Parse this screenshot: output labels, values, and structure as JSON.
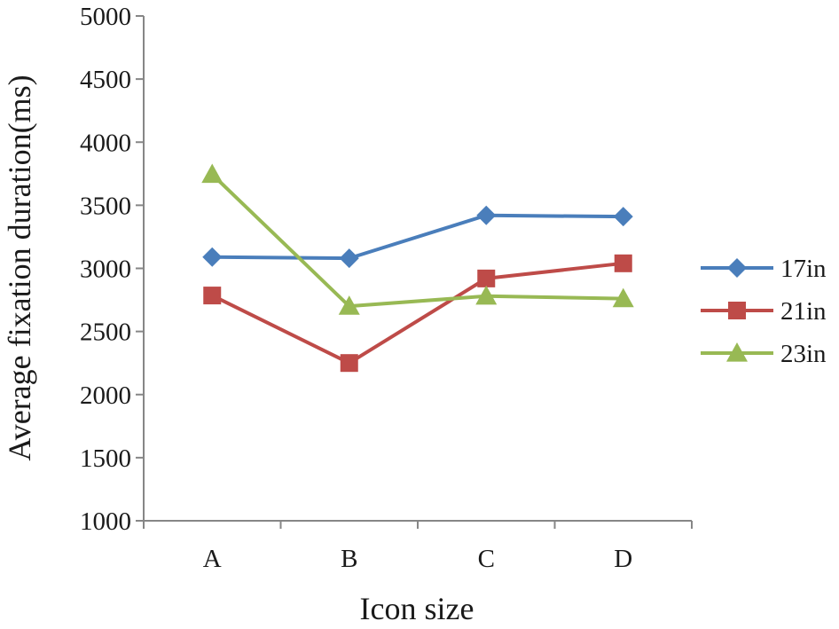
{
  "chart_data": {
    "type": "line",
    "title": "",
    "xlabel": "Icon size",
    "ylabel": "Average fixation duration(ms)",
    "categories": [
      "A",
      "B",
      "C",
      "D"
    ],
    "ylim": [
      1000,
      5000
    ],
    "yticks": [
      1000,
      1500,
      2000,
      2500,
      3000,
      3500,
      4000,
      4500,
      5000
    ],
    "grid": false,
    "legend_position": "right",
    "series": [
      {
        "name": "17in",
        "values": [
          3090,
          3080,
          3420,
          3410
        ],
        "color": "#4a7ebb",
        "marker": "diamond"
      },
      {
        "name": "21in",
        "values": [
          2785,
          2250,
          2920,
          3040
        ],
        "color": "#be4b48",
        "marker": "square"
      },
      {
        "name": "23in",
        "values": [
          3745,
          2700,
          2780,
          2760
        ],
        "color": "#98b954",
        "marker": "triangle"
      }
    ]
  }
}
